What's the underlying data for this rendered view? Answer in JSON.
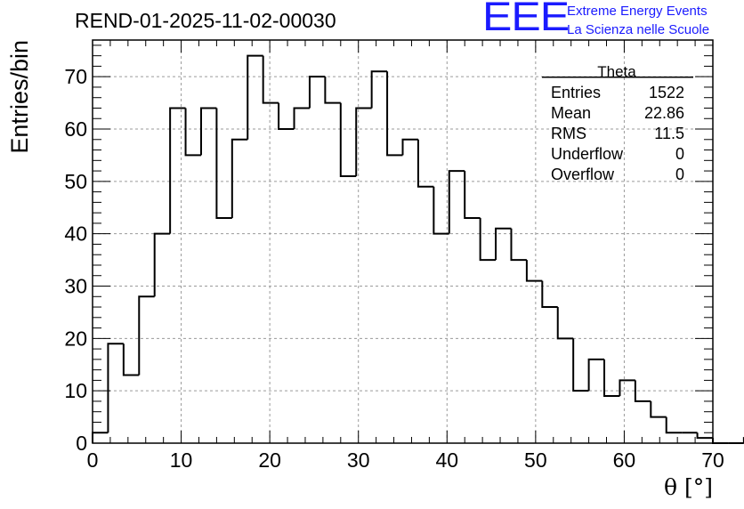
{
  "header": {
    "title": "REND-01-2025-11-02-00030",
    "logo_text": "EEE",
    "logo_line1": "Extreme Energy Events",
    "logo_line2": "La Scienza nelle Scuole",
    "brand_color": "#1a1aff"
  },
  "chart_data": {
    "type": "bar",
    "histogram": true,
    "bin_width": 1.75,
    "x_start": 0,
    "values": [
      2,
      19,
      13,
      28,
      40,
      64,
      55,
      64,
      43,
      58,
      74,
      65,
      60,
      64,
      70,
      65,
      51,
      64,
      71,
      55,
      58,
      49,
      40,
      52,
      43,
      35,
      41,
      35,
      31,
      26,
      20,
      10,
      16,
      9,
      12,
      8,
      5,
      2,
      2,
      1,
      0,
      0,
      1,
      1,
      0
    ],
    "xlabel": "θ [°]",
    "ylabel": "Entries/bin",
    "xlim": [
      0,
      70
    ],
    "ylim": [
      0,
      77
    ],
    "x_ticks": [
      0,
      10,
      20,
      30,
      40,
      50,
      60,
      70
    ],
    "y_ticks": [
      0,
      10,
      20,
      30,
      40,
      50,
      60,
      70
    ],
    "grid": true,
    "line_color": "#000000"
  },
  "stats": {
    "title": "Theta",
    "rows": [
      {
        "label": "Entries",
        "value": "1522"
      },
      {
        "label": "Mean",
        "value": "22.86"
      },
      {
        "label": "RMS",
        "value": "11.5"
      },
      {
        "label": "Underflow",
        "value": "0"
      },
      {
        "label": "Overflow",
        "value": "0"
      }
    ]
  }
}
